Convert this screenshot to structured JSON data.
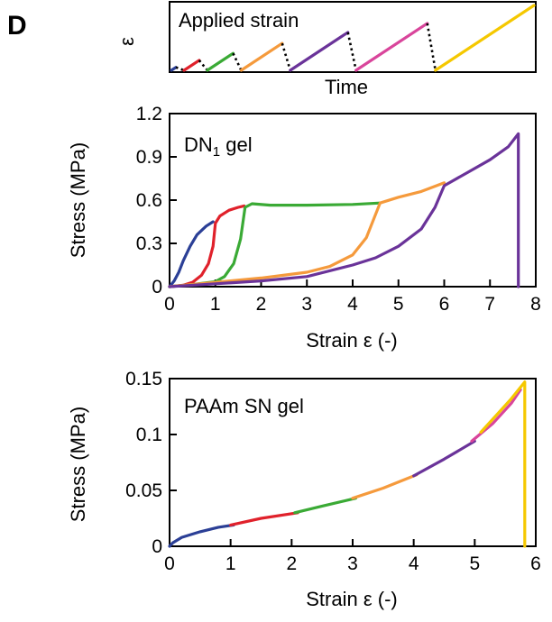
{
  "panel_label": "D",
  "colors": {
    "blue": "#2b3f96",
    "red": "#e0212b",
    "green": "#3aaa35",
    "orange": "#f59a3c",
    "purple": "#6a3399",
    "pink": "#d9459b",
    "yellow": "#f5c800"
  },
  "chart_data": [
    {
      "type": "line",
      "title": "Applied strain",
      "xlabel": "Time",
      "ylabel": "ε",
      "note": "Sawtooth loading schedule: each cycle loads to increasing strain, then unloads (dotted).",
      "series": [
        {
          "color": "blue",
          "peak": 0.3
        },
        {
          "color": "red",
          "peak": 1.0
        },
        {
          "color": "green",
          "peak": 1.7
        },
        {
          "color": "orange",
          "peak": 2.7
        },
        {
          "color": "purple",
          "peak": 3.8
        },
        {
          "color": "pink",
          "peak": 4.7
        },
        {
          "color": "yellow",
          "peak": 6.5
        }
      ]
    },
    {
      "type": "line",
      "title": "DN",
      "title_sub": "1",
      "title_suffix": " gel",
      "xlabel": "Strain ε (-)",
      "ylabel": "Stress (MPa)",
      "xlim": [
        0,
        8
      ],
      "ylim": [
        0,
        1.2
      ],
      "xticks": [
        "0",
        "1",
        "2",
        "3",
        "4",
        "5",
        "6",
        "7",
        "8"
      ],
      "yticks": [
        "0",
        "0.3",
        "0.6",
        "0.9",
        "1.2"
      ],
      "series": [
        {
          "color": "blue",
          "x": [
            0,
            0.1,
            0.2,
            0.3,
            0.45,
            0.6,
            0.8,
            0.95
          ],
          "y": [
            0,
            0.04,
            0.1,
            0.18,
            0.28,
            0.36,
            0.42,
            0.45
          ]
        },
        {
          "color": "red",
          "x": [
            0,
            0.3,
            0.5,
            0.7,
            0.85,
            0.95,
            1.0,
            1.1,
            1.3,
            1.5,
            1.63
          ],
          "y": [
            0,
            0.01,
            0.03,
            0.08,
            0.16,
            0.28,
            0.44,
            0.49,
            0.53,
            0.55,
            0.56
          ]
        },
        {
          "color": "green",
          "x": [
            0,
            0.5,
            1.0,
            1.2,
            1.4,
            1.55,
            1.65,
            1.8,
            2.2,
            3.0,
            4.0,
            4.6
          ],
          "y": [
            0,
            0.015,
            0.035,
            0.07,
            0.16,
            0.33,
            0.55,
            0.575,
            0.565,
            0.565,
            0.57,
            0.58
          ]
        },
        {
          "color": "orange",
          "x": [
            0,
            1.0,
            2.0,
            3.0,
            3.5,
            4.0,
            4.3,
            4.6,
            5.0,
            5.5,
            6.0
          ],
          "y": [
            0,
            0.03,
            0.06,
            0.1,
            0.14,
            0.22,
            0.34,
            0.58,
            0.62,
            0.66,
            0.72
          ]
        },
        {
          "color": "purple",
          "x": [
            0,
            1.0,
            2.0,
            3.0,
            4.0,
            4.5,
            5.0,
            5.5,
            5.8,
            6.0,
            6.5,
            7.0,
            7.4,
            7.62,
            7.62
          ],
          "y": [
            0,
            0.02,
            0.04,
            0.07,
            0.15,
            0.2,
            0.28,
            0.4,
            0.55,
            0.7,
            0.79,
            0.88,
            0.97,
            1.06,
            0
          ]
        }
      ]
    },
    {
      "type": "line",
      "title": "PAAm SN gel",
      "xlabel": "Strain ε (-)",
      "ylabel": "Stress (MPa)",
      "xlim": [
        0,
        6
      ],
      "ylim": [
        0,
        0.15
      ],
      "xticks": [
        "0",
        "1",
        "2",
        "3",
        "4",
        "5",
        "6"
      ],
      "yticks": [
        "0",
        "0.05",
        "0.1",
        "0.15"
      ],
      "series": [
        {
          "color": "blue",
          "x": [
            0,
            0.05,
            0.2,
            0.5,
            0.8,
            1.05
          ],
          "y": [
            0,
            0.003,
            0.008,
            0.013,
            0.017,
            0.019
          ]
        },
        {
          "color": "red",
          "x": [
            1.0,
            1.5,
            2.1
          ],
          "y": [
            0.019,
            0.025,
            0.03
          ]
        },
        {
          "color": "green",
          "x": [
            2.05,
            2.5,
            3.05
          ],
          "y": [
            0.03,
            0.036,
            0.043
          ]
        },
        {
          "color": "orange",
          "x": [
            3.0,
            3.5,
            4.05
          ],
          "y": [
            0.043,
            0.052,
            0.064
          ]
        },
        {
          "color": "purple",
          "x": [
            4.0,
            4.5,
            5.0
          ],
          "y": [
            0.063,
            0.078,
            0.094
          ]
        },
        {
          "color": "pink",
          "x": [
            4.95,
            5.3,
            5.6,
            5.75
          ],
          "y": [
            0.094,
            0.11,
            0.128,
            0.14
          ]
        },
        {
          "color": "yellow",
          "x": [
            5.1,
            5.4,
            5.6,
            5.82,
            5.82
          ],
          "y": [
            0.102,
            0.12,
            0.132,
            0.147,
            0
          ]
        }
      ]
    }
  ]
}
